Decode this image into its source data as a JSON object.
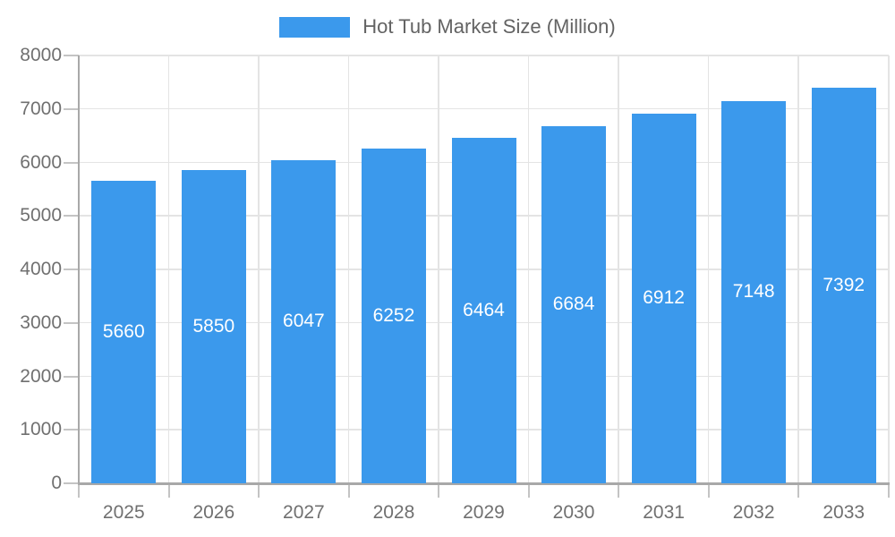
{
  "legend": {
    "label": "Hot Tub Market Size (Million)"
  },
  "colors": {
    "bar": "#3B99EC",
    "bar_label": "#FFFFFF",
    "axis": "#A8A8A8",
    "grid": "#E4E4E4",
    "tick": "#C4C4C4",
    "axis_label": "#707070",
    "legend_text": "#636363",
    "background": "#FFFFFF"
  },
  "chart_data": {
    "type": "bar",
    "title": "Hot Tub Market Size (Million)",
    "categories": [
      "2025",
      "2026",
      "2027",
      "2028",
      "2029",
      "2030",
      "2031",
      "2032",
      "2033"
    ],
    "values": [
      5660,
      5850,
      6047,
      6252,
      6464,
      6684,
      6912,
      7148,
      7392
    ],
    "data_labels": [
      "5660",
      "5850",
      "6047",
      "6252",
      "6464",
      "6684",
      "6912",
      "7148",
      "7392"
    ],
    "xlabel": "",
    "ylabel": "",
    "ylim": [
      0,
      8000
    ],
    "ytick_step": 1000,
    "yticks": [
      0,
      1000,
      2000,
      3000,
      4000,
      5000,
      6000,
      7000,
      8000
    ],
    "grid": true,
    "legend_position": "top-center",
    "bar_label_position": "inside-center"
  }
}
